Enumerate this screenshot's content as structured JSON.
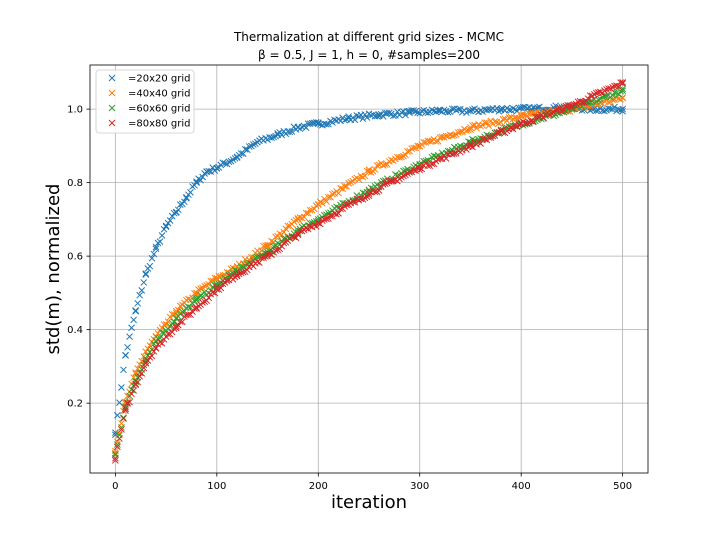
{
  "chart_data": {
    "type": "scatter",
    "title": "Thermalization at different grid sizes - MCMC",
    "subtitle": "β = 0.5, J = 1, h = 0, #samples=200",
    "xlabel": "iteration",
    "ylabel": "std(m), normalized",
    "xlim": [
      -25,
      525
    ],
    "ylim": [
      0.01,
      1.12
    ],
    "xticks": [
      0,
      100,
      200,
      300,
      400,
      500
    ],
    "yticks": [
      0.2,
      0.4,
      0.6,
      0.8,
      1.0
    ],
    "xtick_labels": [
      "0",
      "100",
      "200",
      "300",
      "400",
      "500"
    ],
    "ytick_labels": [
      "0.2",
      "0.4",
      "0.6",
      "0.8",
      "1.0"
    ],
    "grid": true,
    "legend_position": "top-left",
    "marker": "x",
    "series": [
      {
        "name": "=20x20 grid",
        "color": "#1f77b4",
        "x": [
          0,
          10,
          20,
          30,
          40,
          50,
          60,
          70,
          80,
          90,
          100,
          120,
          140,
          160,
          180,
          200,
          230,
          260,
          290,
          320,
          350,
          380,
          410,
          440,
          470,
          500
        ],
        "y": [
          0.12,
          0.33,
          0.45,
          0.55,
          0.62,
          0.68,
          0.72,
          0.76,
          0.8,
          0.83,
          0.84,
          0.87,
          0.91,
          0.93,
          0.95,
          0.96,
          0.975,
          0.985,
          0.99,
          0.995,
          0.995,
          1.0,
          1.0,
          1.005,
          1.0,
          1.0
        ]
      },
      {
        "name": "=40x40 grid",
        "color": "#ff7f0e",
        "x": [
          0,
          10,
          20,
          30,
          40,
          60,
          80,
          100,
          120,
          150,
          180,
          200,
          250,
          300,
          350,
          400,
          450,
          500
        ],
        "y": [
          0.07,
          0.2,
          0.28,
          0.34,
          0.38,
          0.45,
          0.5,
          0.54,
          0.57,
          0.63,
          0.7,
          0.74,
          0.83,
          0.9,
          0.95,
          0.98,
          1.0,
          1.03
        ]
      },
      {
        "name": "=60x60 grid",
        "color": "#2ca02c",
        "x": [
          0,
          10,
          20,
          30,
          40,
          60,
          80,
          100,
          120,
          150,
          180,
          200,
          250,
          300,
          350,
          400,
          450,
          500
        ],
        "y": [
          0.06,
          0.19,
          0.26,
          0.32,
          0.37,
          0.43,
          0.48,
          0.52,
          0.56,
          0.61,
          0.67,
          0.7,
          0.78,
          0.85,
          0.91,
          0.96,
          1.0,
          1.05
        ]
      },
      {
        "name": "=80x80 grid",
        "color": "#d62728",
        "x": [
          0,
          10,
          20,
          30,
          40,
          60,
          80,
          100,
          120,
          150,
          180,
          200,
          250,
          300,
          350,
          400,
          450,
          500
        ],
        "y": [
          0.05,
          0.18,
          0.25,
          0.31,
          0.35,
          0.41,
          0.46,
          0.51,
          0.55,
          0.6,
          0.66,
          0.69,
          0.77,
          0.84,
          0.9,
          0.96,
          1.01,
          1.07
        ]
      }
    ]
  }
}
